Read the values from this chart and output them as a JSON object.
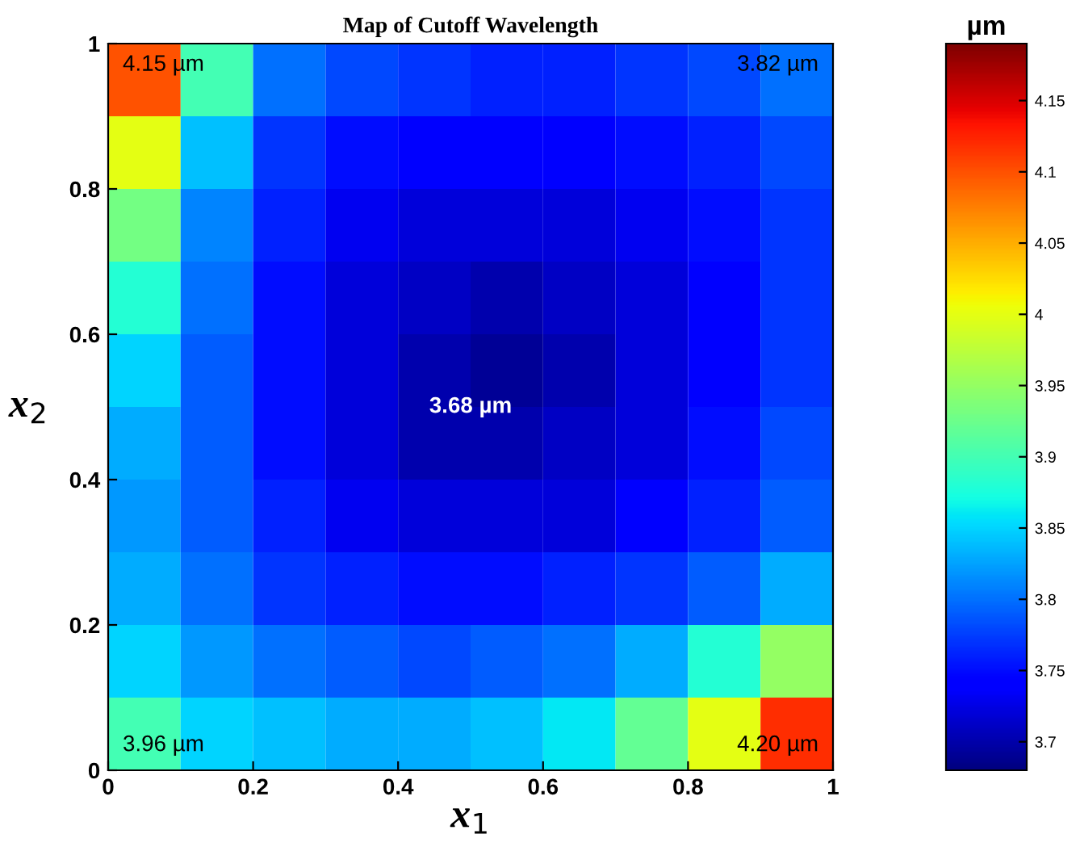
{
  "chart_data": {
    "type": "heatmap",
    "title": "Map of Cutoff Wavelength",
    "xlabel": "x$_{1}$",
    "ylabel": "x$_{2}$",
    "clabel": "µm",
    "x": [
      0.05,
      0.15,
      0.25,
      0.35,
      0.45,
      0.55,
      0.65,
      0.75,
      0.85,
      0.95
    ],
    "y": [
      0.95,
      0.85,
      0.75,
      0.65,
      0.55,
      0.45,
      0.35,
      0.25,
      0.15,
      0.05
    ],
    "cells": [
      [
        4.1,
        3.9,
        3.8,
        3.78,
        3.77,
        3.76,
        3.76,
        3.77,
        3.78,
        3.8
      ],
      [
        4.0,
        3.84,
        3.77,
        3.75,
        3.74,
        3.74,
        3.74,
        3.75,
        3.76,
        3.78
      ],
      [
        3.93,
        3.81,
        3.76,
        3.73,
        3.72,
        3.72,
        3.72,
        3.73,
        3.75,
        3.77
      ],
      [
        3.88,
        3.8,
        3.75,
        3.72,
        3.71,
        3.7,
        3.71,
        3.72,
        3.74,
        3.77
      ],
      [
        3.85,
        3.79,
        3.75,
        3.72,
        3.7,
        3.69,
        3.7,
        3.72,
        3.74,
        3.77
      ],
      [
        3.83,
        3.79,
        3.75,
        3.72,
        3.7,
        3.7,
        3.71,
        3.72,
        3.75,
        3.78
      ],
      [
        3.82,
        3.79,
        3.76,
        3.73,
        3.72,
        3.72,
        3.72,
        3.74,
        3.76,
        3.79
      ],
      [
        3.83,
        3.8,
        3.77,
        3.76,
        3.75,
        3.75,
        3.76,
        3.77,
        3.79,
        3.83
      ],
      [
        3.85,
        3.82,
        3.8,
        3.79,
        3.78,
        3.79,
        3.8,
        3.83,
        3.88,
        3.95
      ],
      [
        3.9,
        3.85,
        3.84,
        3.83,
        3.83,
        3.84,
        3.86,
        3.92,
        4.0,
        4.12
      ]
    ],
    "xlim": [
      0,
      1
    ],
    "ylim": [
      0,
      1
    ],
    "xticks": [
      0,
      0.2,
      0.4,
      0.6,
      0.8,
      1
    ],
    "yticks": [
      0,
      0.2,
      0.4,
      0.6,
      0.8,
      1
    ],
    "clim": [
      3.68,
      4.19
    ],
    "cticks": [
      3.7,
      3.75,
      3.8,
      3.85,
      3.9,
      3.95,
      4,
      4.05,
      4.1,
      4.15
    ],
    "annotations": [
      "4.15 µm",
      "3.82 µm",
      "3.68 µm",
      "3.96 µm",
      "4.20 µm"
    ]
  }
}
